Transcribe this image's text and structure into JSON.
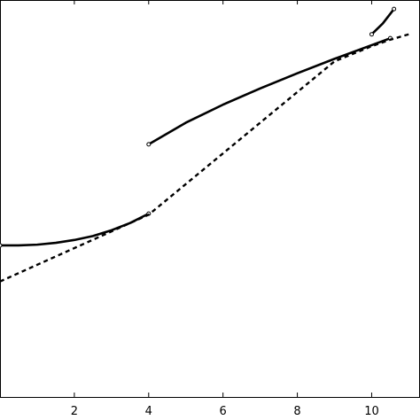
{
  "chart_data": {
    "type": "line",
    "title": "",
    "xlabel": "",
    "ylabel": "",
    "xlim": [
      0,
      11.3
    ],
    "ylim": [
      0,
      11
    ],
    "x_ticks": [
      2,
      4,
      6,
      8,
      10
    ],
    "x_tick_labels": [
      "2",
      "4",
      "6",
      "8",
      "10"
    ],
    "grid": false,
    "legend": "none",
    "colors": {
      "line": "#000000",
      "background": "#ffffff"
    },
    "series": [
      {
        "style": "solid",
        "x": [
          0,
          0.5,
          1,
          1.5,
          2,
          2.5,
          3,
          3.5,
          4
        ],
        "y": [
          4.2,
          4.2,
          4.22,
          4.27,
          4.35,
          4.46,
          4.62,
          4.82,
          5.08
        ],
        "end_markers": true
      },
      {
        "style": "solid",
        "x": [
          4,
          5,
          6,
          7,
          8,
          9,
          10,
          10.5
        ],
        "y": [
          7.0,
          7.6,
          8.1,
          8.55,
          8.97,
          9.37,
          9.75,
          9.94
        ],
        "end_markers": true
      },
      {
        "style": "solid",
        "x": [
          10,
          10.3,
          10.6
        ],
        "y": [
          10.05,
          10.35,
          10.75
        ],
        "end_markers": true
      },
      {
        "style": "dashed",
        "x": [
          0,
          4,
          9,
          10,
          10.5,
          11
        ],
        "y": [
          3.2,
          5.05,
          9.3,
          9.72,
          9.9,
          10.05
        ]
      }
    ]
  }
}
